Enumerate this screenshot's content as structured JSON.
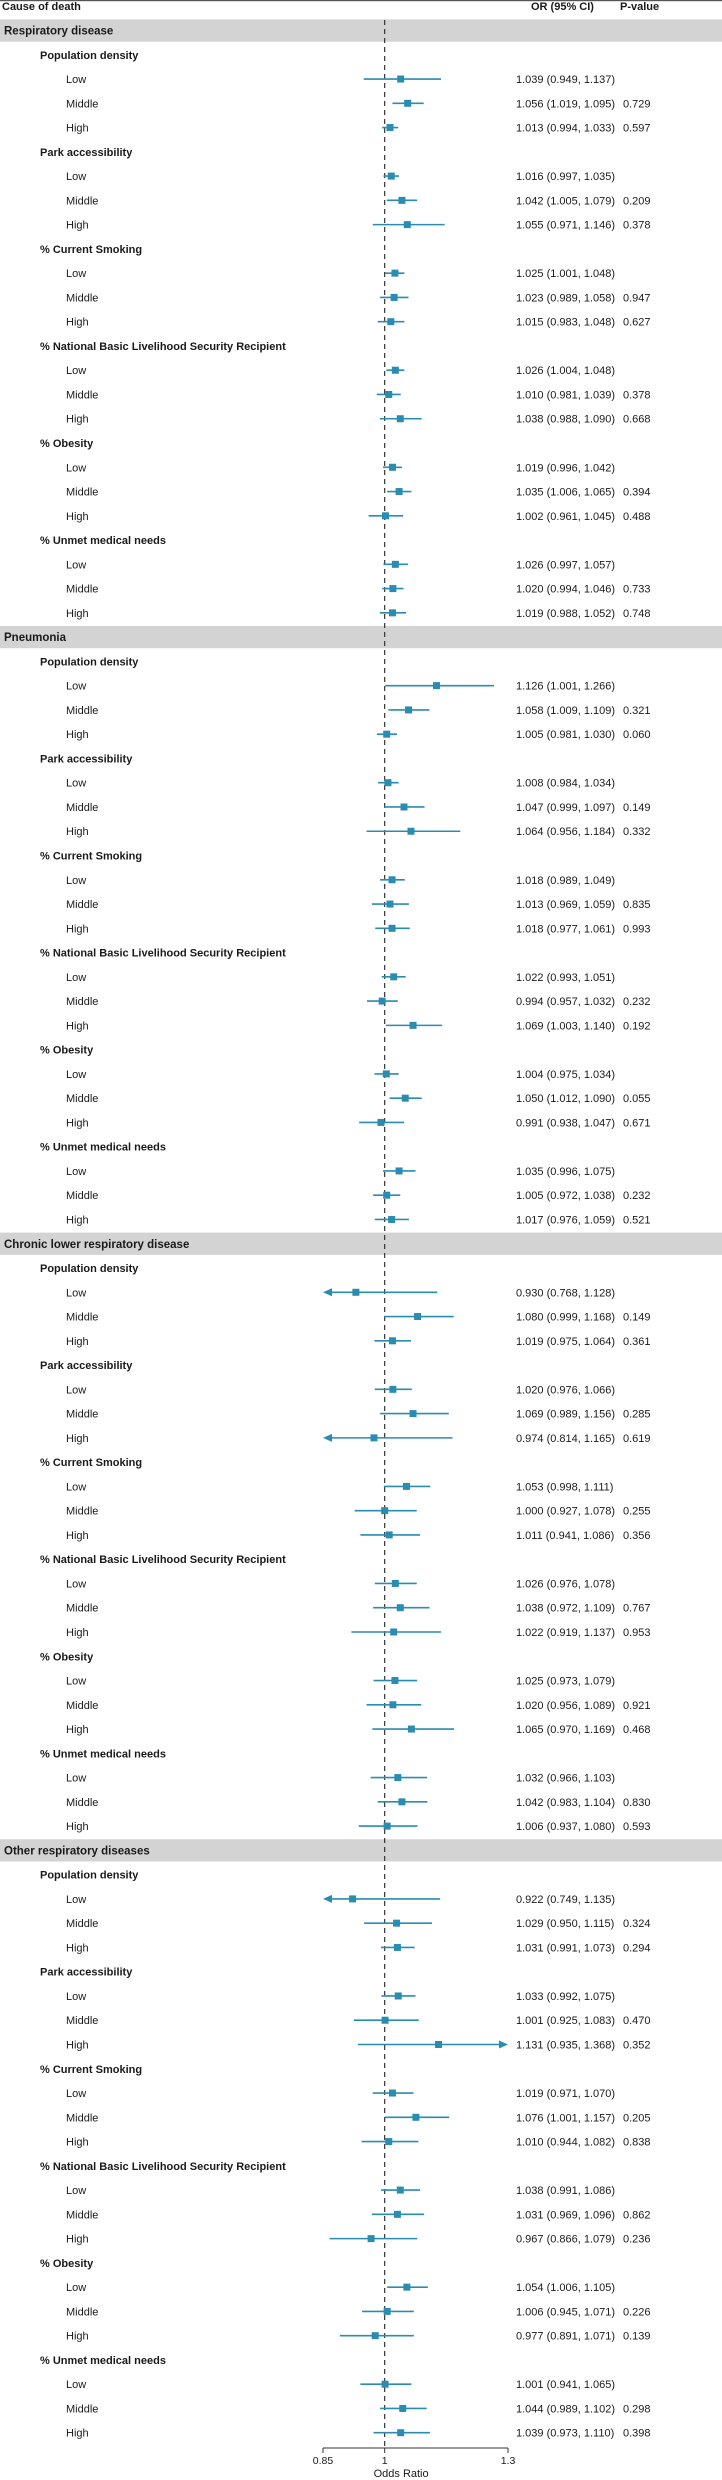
{
  "chart_data": {
    "type": "forest",
    "header": {
      "cause": "Cause of death",
      "or": "OR (95% CI)",
      "p": "P-value"
    },
    "xlabel": "Odds Ratio",
    "xlim": [
      0.85,
      1.3
    ],
    "xticks": [
      {
        "value": 0.85,
        "label": "0.85"
      },
      {
        "value": 1.0,
        "label": "1"
      },
      {
        "value": 1.3,
        "label": "1.3"
      }
    ],
    "reference_value": 1.0,
    "marker_color": "#2a8cb0",
    "band_color": "#d3d3d3",
    "groups": [
      {
        "name": "Respiratory disease",
        "variables": [
          {
            "name": "Population density",
            "rows": [
              {
                "level": "Low",
                "or": 1.039,
                "lo": 0.949,
                "hi": 1.137,
                "text": "1.039 (0.949, 1.137)",
                "p": ""
              },
              {
                "level": "Middle",
                "or": 1.056,
                "lo": 1.019,
                "hi": 1.095,
                "text": "1.056 (1.019, 1.095)",
                "p": "0.729"
              },
              {
                "level": "High",
                "or": 1.013,
                "lo": 0.994,
                "hi": 1.033,
                "text": "1.013 (0.994, 1.033)",
                "p": "0.597"
              }
            ]
          },
          {
            "name": "Park accessibility",
            "rows": [
              {
                "level": "Low",
                "or": 1.016,
                "lo": 0.997,
                "hi": 1.035,
                "text": "1.016 (0.997, 1.035)",
                "p": ""
              },
              {
                "level": "Middle",
                "or": 1.042,
                "lo": 1.005,
                "hi": 1.079,
                "text": "1.042 (1.005, 1.079)",
                "p": "0.209"
              },
              {
                "level": "High",
                "or": 1.055,
                "lo": 0.971,
                "hi": 1.146,
                "text": "1.055 (0.971, 1.146)",
                "p": "0.378"
              }
            ]
          },
          {
            "name": "% Current Smoking",
            "rows": [
              {
                "level": "Low",
                "or": 1.025,
                "lo": 1.001,
                "hi": 1.048,
                "text": "1.025 (1.001, 1.048)",
                "p": ""
              },
              {
                "level": "Middle",
                "or": 1.023,
                "lo": 0.989,
                "hi": 1.058,
                "text": "1.023 (0.989, 1.058)",
                "p": "0.947"
              },
              {
                "level": "High",
                "or": 1.015,
                "lo": 0.983,
                "hi": 1.048,
                "text": "1.015 (0.983, 1.048)",
                "p": "0.627"
              }
            ]
          },
          {
            "name": "% National Basic Livelihood Security Recipient",
            "rows": [
              {
                "level": "Low",
                "or": 1.026,
                "lo": 1.004,
                "hi": 1.048,
                "text": "1.026 (1.004, 1.048)",
                "p": ""
              },
              {
                "level": "Middle",
                "or": 1.01,
                "lo": 0.981,
                "hi": 1.039,
                "text": "1.010 (0.981, 1.039)",
                "p": "0.378"
              },
              {
                "level": "High",
                "or": 1.038,
                "lo": 0.988,
                "hi": 1.09,
                "text": "1.038 (0.988, 1.090)",
                "p": "0.668"
              }
            ]
          },
          {
            "name": "% Obesity",
            "rows": [
              {
                "level": "Low",
                "or": 1.019,
                "lo": 0.996,
                "hi": 1.042,
                "text": "1.019 (0.996, 1.042)",
                "p": ""
              },
              {
                "level": "Middle",
                "or": 1.035,
                "lo": 1.006,
                "hi": 1.065,
                "text": "1.035 (1.006, 1.065)",
                "p": "0.394"
              },
              {
                "level": "High",
                "or": 1.002,
                "lo": 0.961,
                "hi": 1.045,
                "text": "1.002 (0.961, 1.045)",
                "p": "0.488"
              }
            ]
          },
          {
            "name": "% Unmet medical needs",
            "rows": [
              {
                "level": "Low",
                "or": 1.026,
                "lo": 0.997,
                "hi": 1.057,
                "text": "1.026 (0.997, 1.057)",
                "p": ""
              },
              {
                "level": "Middle",
                "or": 1.02,
                "lo": 0.994,
                "hi": 1.046,
                "text": "1.020 (0.994, 1.046)",
                "p": "0.733"
              },
              {
                "level": "High",
                "or": 1.019,
                "lo": 0.988,
                "hi": 1.052,
                "text": "1.019 (0.988, 1.052)",
                "p": "0.748"
              }
            ]
          }
        ]
      },
      {
        "name": "Pneumonia",
        "variables": [
          {
            "name": "Population density",
            "rows": [
              {
                "level": "Low",
                "or": 1.126,
                "lo": 1.001,
                "hi": 1.266,
                "text": "1.126 (1.001, 1.266)",
                "p": ""
              },
              {
                "level": "Middle",
                "or": 1.058,
                "lo": 1.009,
                "hi": 1.109,
                "text": "1.058 (1.009, 1.109)",
                "p": "0.321"
              },
              {
                "level": "High",
                "or": 1.005,
                "lo": 0.981,
                "hi": 1.03,
                "text": "1.005 (0.981, 1.030)",
                "p": "0.060"
              }
            ]
          },
          {
            "name": "Park accessibility",
            "rows": [
              {
                "level": "Low",
                "or": 1.008,
                "lo": 0.984,
                "hi": 1.034,
                "text": "1.008 (0.984, 1.034)",
                "p": ""
              },
              {
                "level": "Middle",
                "or": 1.047,
                "lo": 0.999,
                "hi": 1.097,
                "text": "1.047 (0.999, 1.097)",
                "p": "0.149"
              },
              {
                "level": "High",
                "or": 1.064,
                "lo": 0.956,
                "hi": 1.184,
                "text": "1.064 (0.956, 1.184)",
                "p": "0.332"
              }
            ]
          },
          {
            "name": "% Current Smoking",
            "rows": [
              {
                "level": "Low",
                "or": 1.018,
                "lo": 0.989,
                "hi": 1.049,
                "text": "1.018 (0.989, 1.049)",
                "p": ""
              },
              {
                "level": "Middle",
                "or": 1.013,
                "lo": 0.969,
                "hi": 1.059,
                "text": "1.013 (0.969, 1.059)",
                "p": "0.835"
              },
              {
                "level": "High",
                "or": 1.018,
                "lo": 0.977,
                "hi": 1.061,
                "text": "1.018 (0.977, 1.061)",
                "p": "0.993"
              }
            ]
          },
          {
            "name": "% National Basic Livelihood Security Recipient",
            "rows": [
              {
                "level": "Low",
                "or": 1.022,
                "lo": 0.993,
                "hi": 1.051,
                "text": "1.022 (0.993, 1.051)",
                "p": ""
              },
              {
                "level": "Middle",
                "or": 0.994,
                "lo": 0.957,
                "hi": 1.032,
                "text": "0.994 (0.957, 1.032)",
                "p": "0.232"
              },
              {
                "level": "High",
                "or": 1.069,
                "lo": 1.003,
                "hi": 1.14,
                "text": "1.069 (1.003, 1.140)",
                "p": "0.192"
              }
            ]
          },
          {
            "name": "% Obesity",
            "rows": [
              {
                "level": "Low",
                "or": 1.004,
                "lo": 0.975,
                "hi": 1.034,
                "text": "1.004 (0.975, 1.034)",
                "p": ""
              },
              {
                "level": "Middle",
                "or": 1.05,
                "lo": 1.012,
                "hi": 1.09,
                "text": "1.050 (1.012, 1.090)",
                "p": "0.055"
              },
              {
                "level": "High",
                "or": 0.991,
                "lo": 0.938,
                "hi": 1.047,
                "text": "0.991 (0.938, 1.047)",
                "p": "0.671"
              }
            ]
          },
          {
            "name": "% Unmet medical needs",
            "rows": [
              {
                "level": "Low",
                "or": 1.035,
                "lo": 0.996,
                "hi": 1.075,
                "text": "1.035 (0.996, 1.075)",
                "p": ""
              },
              {
                "level": "Middle",
                "or": 1.005,
                "lo": 0.972,
                "hi": 1.038,
                "text": "1.005 (0.972, 1.038)",
                "p": "0.232"
              },
              {
                "level": "High",
                "or": 1.017,
                "lo": 0.976,
                "hi": 1.059,
                "text": "1.017 (0.976, 1.059)",
                "p": "0.521"
              }
            ]
          }
        ]
      },
      {
        "name": "Chronic lower respiratory disease",
        "variables": [
          {
            "name": "Population density",
            "rows": [
              {
                "level": "Low",
                "or": 0.93,
                "lo": 0.768,
                "hi": 1.128,
                "text": "0.930 (0.768, 1.128)",
                "p": ""
              },
              {
                "level": "Middle",
                "or": 1.08,
                "lo": 0.999,
                "hi": 1.168,
                "text": "1.080 (0.999, 1.168)",
                "p": "0.149"
              },
              {
                "level": "High",
                "or": 1.019,
                "lo": 0.975,
                "hi": 1.064,
                "text": "1.019 (0.975, 1.064)",
                "p": "0.361"
              }
            ]
          },
          {
            "name": "Park accessibility",
            "rows": [
              {
                "level": "Low",
                "or": 1.02,
                "lo": 0.976,
                "hi": 1.066,
                "text": "1.020 (0.976, 1.066)",
                "p": ""
              },
              {
                "level": "Middle",
                "or": 1.069,
                "lo": 0.989,
                "hi": 1.156,
                "text": "1.069 (0.989, 1.156)",
                "p": "0.285"
              },
              {
                "level": "High",
                "or": 0.974,
                "lo": 0.814,
                "hi": 1.165,
                "text": "0.974 (0.814, 1.165)",
                "p": "0.619"
              }
            ]
          },
          {
            "name": "% Current Smoking",
            "rows": [
              {
                "level": "Low",
                "or": 1.053,
                "lo": 0.998,
                "hi": 1.111,
                "text": "1.053 (0.998, 1.111)",
                "p": ""
              },
              {
                "level": "Middle",
                "or": 1.0,
                "lo": 0.927,
                "hi": 1.078,
                "text": "1.000 (0.927, 1.078)",
                "p": "0.255"
              },
              {
                "level": "High",
                "or": 1.011,
                "lo": 0.941,
                "hi": 1.086,
                "text": "1.011 (0.941, 1.086)",
                "p": "0.356"
              }
            ]
          },
          {
            "name": "% National Basic Livelihood Security Recipient",
            "rows": [
              {
                "level": "Low",
                "or": 1.026,
                "lo": 0.976,
                "hi": 1.078,
                "text": "1.026 (0.976, 1.078)",
                "p": ""
              },
              {
                "level": "Middle",
                "or": 1.038,
                "lo": 0.972,
                "hi": 1.109,
                "text": "1.038 (0.972, 1.109)",
                "p": "0.767"
              },
              {
                "level": "High",
                "or": 1.022,
                "lo": 0.919,
                "hi": 1.137,
                "text": "1.022 (0.919, 1.137)",
                "p": "0.953"
              }
            ]
          },
          {
            "name": "% Obesity",
            "rows": [
              {
                "level": "Low",
                "or": 1.025,
                "lo": 0.973,
                "hi": 1.079,
                "text": "1.025 (0.973, 1.079)",
                "p": ""
              },
              {
                "level": "Middle",
                "or": 1.02,
                "lo": 0.956,
                "hi": 1.089,
                "text": "1.020 (0.956, 1.089)",
                "p": "0.921"
              },
              {
                "level": "High",
                "or": 1.065,
                "lo": 0.97,
                "hi": 1.169,
                "text": "1.065 (0.970, 1.169)",
                "p": "0.468"
              }
            ]
          },
          {
            "name": "% Unmet medical needs",
            "rows": [
              {
                "level": "Low",
                "or": 1.032,
                "lo": 0.966,
                "hi": 1.103,
                "text": "1.032 (0.966, 1.103)",
                "p": ""
              },
              {
                "level": "Middle",
                "or": 1.042,
                "lo": 0.983,
                "hi": 1.104,
                "text": "1.042 (0.983, 1.104)",
                "p": "0.830"
              },
              {
                "level": "High",
                "or": 1.006,
                "lo": 0.937,
                "hi": 1.08,
                "text": "1.006 (0.937, 1.080)",
                "p": "0.593"
              }
            ]
          }
        ]
      },
      {
        "name": "Other respiratory diseases",
        "variables": [
          {
            "name": "Population density",
            "rows": [
              {
                "level": "Low",
                "or": 0.922,
                "lo": 0.749,
                "hi": 1.135,
                "text": "0.922 (0.749, 1.135)",
                "p": ""
              },
              {
                "level": "Middle",
                "or": 1.029,
                "lo": 0.95,
                "hi": 1.115,
                "text": "1.029 (0.950, 1.115)",
                "p": "0.324"
              },
              {
                "level": "High",
                "or": 1.031,
                "lo": 0.991,
                "hi": 1.073,
                "text": "1.031 (0.991, 1.073)",
                "p": "0.294"
              }
            ]
          },
          {
            "name": "Park accessibility",
            "rows": [
              {
                "level": "Low",
                "or": 1.033,
                "lo": 0.992,
                "hi": 1.075,
                "text": "1.033 (0.992, 1.075)",
                "p": ""
              },
              {
                "level": "Middle",
                "or": 1.001,
                "lo": 0.925,
                "hi": 1.083,
                "text": "1.001 (0.925, 1.083)",
                "p": "0.470"
              },
              {
                "level": "High",
                "or": 1.131,
                "lo": 0.935,
                "hi": 1.368,
                "text": "1.131 (0.935, 1.368)",
                "p": "0.352"
              }
            ]
          },
          {
            "name": "% Current Smoking",
            "rows": [
              {
                "level": "Low",
                "or": 1.019,
                "lo": 0.971,
                "hi": 1.07,
                "text": "1.019 (0.971, 1.070)",
                "p": ""
              },
              {
                "level": "Middle",
                "or": 1.076,
                "lo": 1.001,
                "hi": 1.157,
                "text": "1.076 (1.001, 1.157)",
                "p": "0.205"
              },
              {
                "level": "High",
                "or": 1.01,
                "lo": 0.944,
                "hi": 1.082,
                "text": "1.010 (0.944, 1.082)",
                "p": "0.838"
              }
            ]
          },
          {
            "name": "% National Basic Livelihood Security Recipient",
            "rows": [
              {
                "level": "Low",
                "or": 1.038,
                "lo": 0.991,
                "hi": 1.086,
                "text": "1.038 (0.991, 1.086)",
                "p": ""
              },
              {
                "level": "Middle",
                "or": 1.031,
                "lo": 0.969,
                "hi": 1.096,
                "text": "1.031 (0.969, 1.096)",
                "p": "0.862"
              },
              {
                "level": "High",
                "or": 0.967,
                "lo": 0.866,
                "hi": 1.079,
                "text": "0.967 (0.866, 1.079)",
                "p": "0.236"
              }
            ]
          },
          {
            "name": "% Obesity",
            "rows": [
              {
                "level": "Low",
                "or": 1.054,
                "lo": 1.006,
                "hi": 1.105,
                "text": "1.054 (1.006, 1.105)",
                "p": ""
              },
              {
                "level": "Middle",
                "or": 1.006,
                "lo": 0.945,
                "hi": 1.071,
                "text": "1.006 (0.945, 1.071)",
                "p": "0.226"
              },
              {
                "level": "High",
                "or": 0.977,
                "lo": 0.891,
                "hi": 1.071,
                "text": "0.977 (0.891, 1.071)",
                "p": "0.139"
              }
            ]
          },
          {
            "name": "% Unmet medical needs",
            "rows": [
              {
                "level": "Low",
                "or": 1.001,
                "lo": 0.941,
                "hi": 1.065,
                "text": "1.001 (0.941, 1.065)",
                "p": ""
              },
              {
                "level": "Middle",
                "or": 1.044,
                "lo": 0.989,
                "hi": 1.102,
                "text": "1.044 (0.989, 1.102)",
                "p": "0.298"
              },
              {
                "level": "High",
                "or": 1.039,
                "lo": 0.973,
                "hi": 1.11,
                "text": "1.039 (0.973, 1.110)",
                "p": "0.398"
              }
            ]
          }
        ]
      }
    ]
  }
}
